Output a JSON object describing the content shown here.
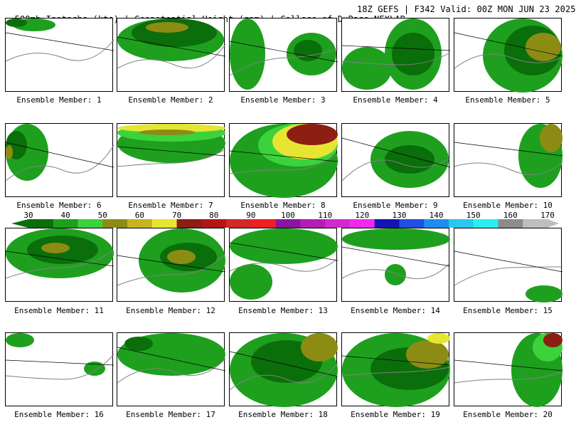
{
  "header": {
    "title_left": "500mb Isotachs (kts) | Geopotential Height (gpm) | College of DuPage NEXLAB",
    "title_right": "18Z GEFS | F342 Valid: 00Z MON JUN 23 2025"
  },
  "panels": [
    {
      "member": 1,
      "label": "Ensemble Member: 1"
    },
    {
      "member": 2,
      "label": "Ensemble Member: 2"
    },
    {
      "member": 3,
      "label": "Ensemble Member: 3"
    },
    {
      "member": 4,
      "label": "Ensemble Member: 4"
    },
    {
      "member": 5,
      "label": "Ensemble Member: 5"
    },
    {
      "member": 6,
      "label": "Ensemble Member: 6"
    },
    {
      "member": 7,
      "label": "Ensemble Member: 7"
    },
    {
      "member": 8,
      "label": "Ensemble Member: 8"
    },
    {
      "member": 9,
      "label": "Ensemble Member: 9"
    },
    {
      "member": 10,
      "label": "Ensemble Member: 10"
    },
    {
      "member": 11,
      "label": "Ensemble Member: 11"
    },
    {
      "member": 12,
      "label": "Ensemble Member: 12"
    },
    {
      "member": 13,
      "label": "Ensemble Member: 13"
    },
    {
      "member": 14,
      "label": "Ensemble Member: 14"
    },
    {
      "member": 15,
      "label": "Ensemble Member: 15"
    },
    {
      "member": 16,
      "label": "Ensemble Member: 16"
    },
    {
      "member": 17,
      "label": "Ensemble Member: 17"
    },
    {
      "member": 18,
      "label": "Ensemble Member: 18"
    },
    {
      "member": 19,
      "label": "Ensemble Member: 19"
    },
    {
      "member": 20,
      "label": "Ensemble Member: 20"
    }
  ],
  "colorbar": {
    "ticks": [
      "30",
      "40",
      "50",
      "60",
      "70",
      "80",
      "90",
      "100",
      "110",
      "120",
      "130",
      "140",
      "150",
      "160",
      "170"
    ],
    "colors": [
      "#0a6e0a",
      "#1ea01e",
      "#3cd23c",
      "#8c8c14",
      "#c8b41e",
      "#e6e632",
      "#8c1e14",
      "#b41414",
      "#d22828",
      "#f01e1e",
      "#8c14a0",
      "#b41eb4",
      "#d228d2",
      "#f028f0",
      "#1414b4",
      "#1e50e6",
      "#1e8cf0",
      "#28c8f0",
      "#28f0f0",
      "#8c8c8c",
      "#bebebe"
    ]
  },
  "legend_colors": {
    "green_dark": "#0a6e0a",
    "green_mid": "#1ea01e",
    "green_light": "#3cd23c",
    "olive": "#8c8c14",
    "yellow": "#e6e632",
    "darkred": "#8c1e14",
    "boundary_gray": "#808080"
  }
}
